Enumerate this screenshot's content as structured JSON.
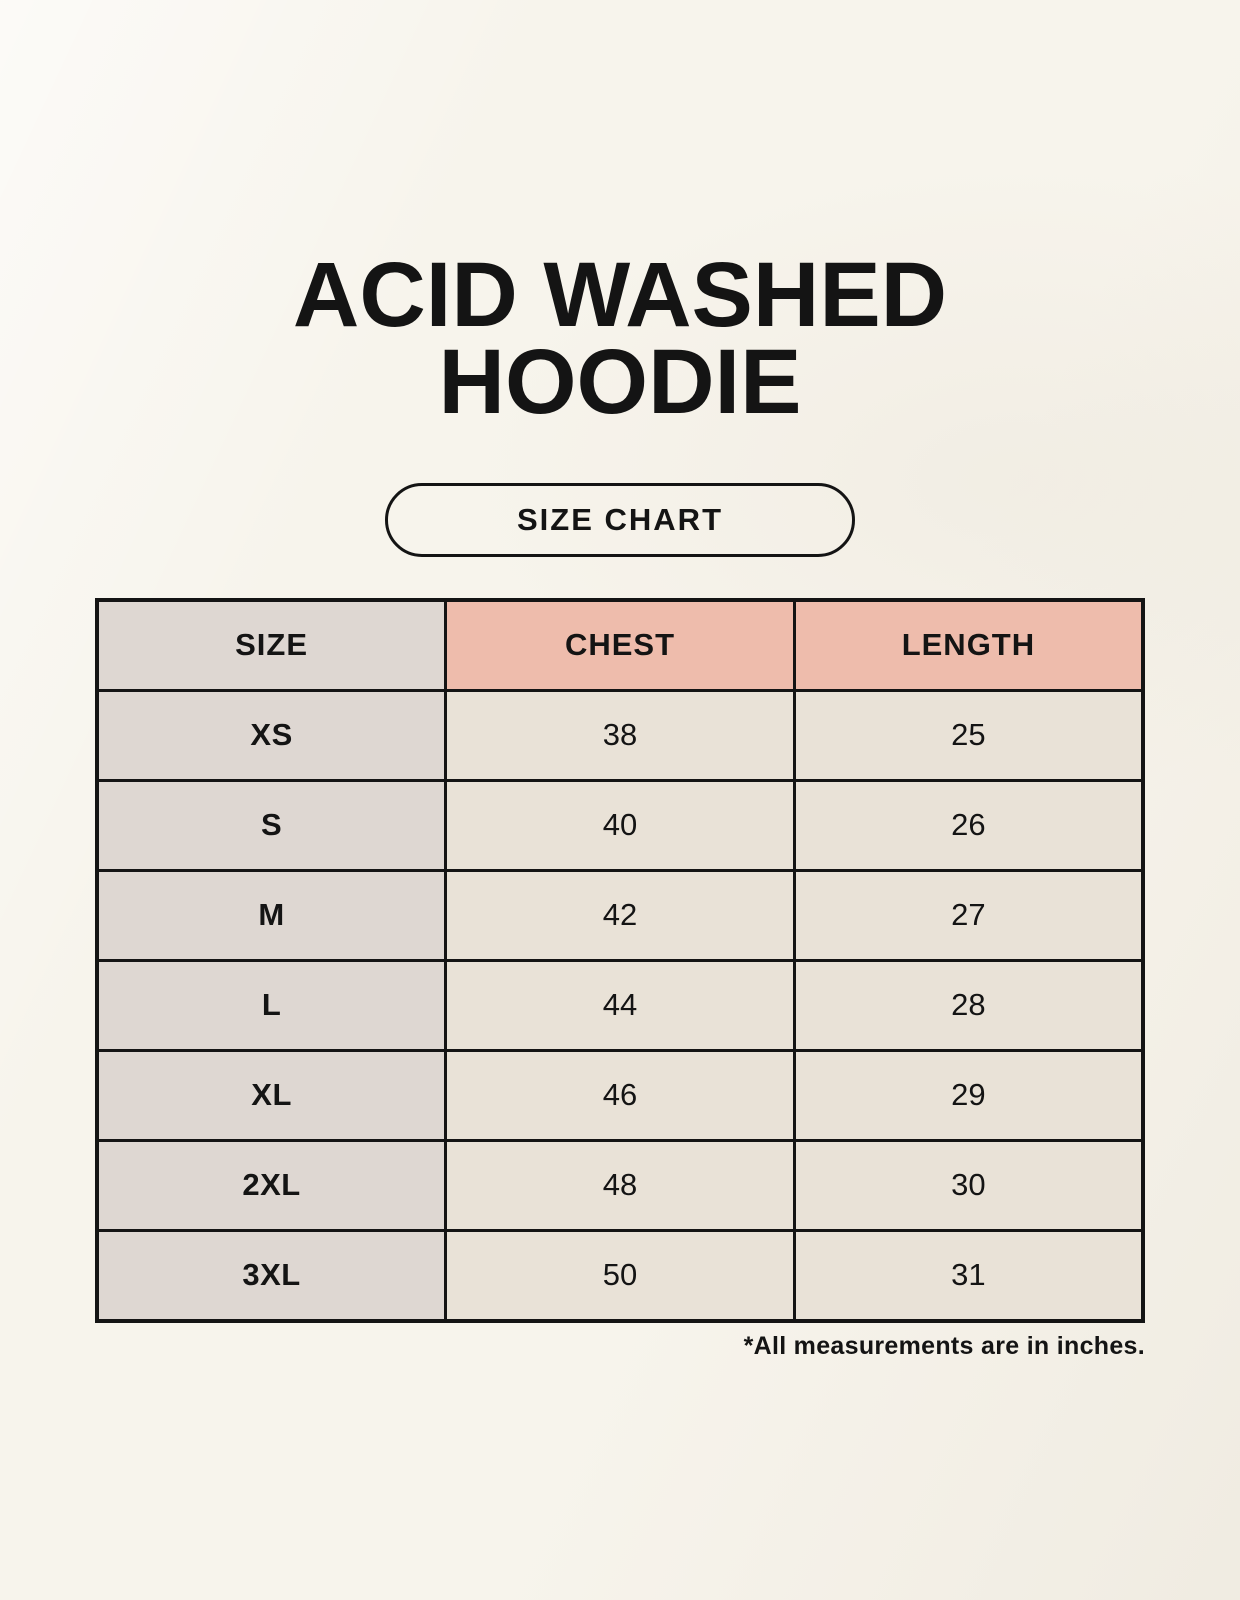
{
  "header": {
    "title_line1": "ACID WASHED",
    "title_line2": "HOODIE",
    "size_chart_label": "SIZE CHART"
  },
  "table": {
    "columns": [
      "SIZE",
      "CHEST",
      "LENGTH"
    ],
    "rows": [
      {
        "size": "XS",
        "chest": "38",
        "length": "25"
      },
      {
        "size": "S",
        "chest": "40",
        "length": "26"
      },
      {
        "size": "M",
        "chest": "42",
        "length": "27"
      },
      {
        "size": "L",
        "chest": "44",
        "length": "28"
      },
      {
        "size": "XL",
        "chest": "46",
        "length": "29"
      },
      {
        "size": "2XL",
        "chest": "48",
        "length": "30"
      },
      {
        "size": "3XL",
        "chest": "50",
        "length": "31"
      }
    ]
  },
  "footnote": "*All measurements are in inches.",
  "colors": {
    "background": "#f7f4ec",
    "table_border": "#141414",
    "size_column_bg": "#ded7d2",
    "measure_header_bg": "#eebcac",
    "data_cell_bg": "#e9e2d7",
    "text": "#141414"
  },
  "chart_data": {
    "type": "table",
    "title": "ACID WASHED HOODIE",
    "subtitle": "SIZE CHART",
    "columns": [
      "SIZE",
      "CHEST",
      "LENGTH"
    ],
    "rows": [
      [
        "XS",
        38,
        25
      ],
      [
        "S",
        40,
        26
      ],
      [
        "M",
        42,
        27
      ],
      [
        "L",
        44,
        28
      ],
      [
        "XL",
        46,
        29
      ],
      [
        "2XL",
        48,
        30
      ],
      [
        "3XL",
        50,
        31
      ]
    ],
    "note": "*All measurements are in inches.",
    "units": "inches"
  }
}
